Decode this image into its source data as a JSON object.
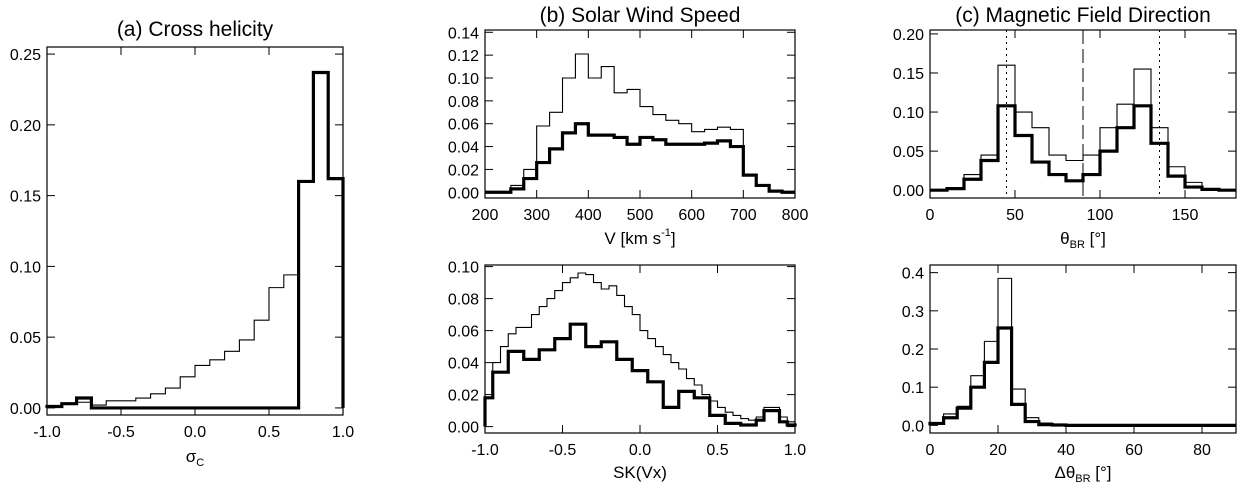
{
  "chart_data": [
    {
      "type": "histogram",
      "title": "(a) Cross helicity",
      "xlabel": "σ",
      "xlabel_sub": "C",
      "xlabel_sup": "",
      "xlim": [
        -1.0,
        1.0
      ],
      "ylim": [
        -0.005,
        0.255
      ],
      "xticks": [
        "-1.0",
        "-0.5",
        "0.0",
        "0.5",
        "1.0"
      ],
      "xtick_values": [
        -1.0,
        -0.5,
        0.0,
        0.5,
        1.0
      ],
      "yticks": [
        "0.00",
        "0.05",
        "0.10",
        "0.15",
        "0.20",
        "0.25"
      ],
      "ytick_values": [
        0,
        0.05,
        0.1,
        0.15,
        0.2,
        0.25
      ],
      "bin_edges": [
        -1.0,
        -0.9,
        -0.8,
        -0.7,
        -0.6,
        -0.5,
        -0.4,
        -0.3,
        -0.2,
        -0.1,
        0.0,
        0.1,
        0.2,
        0.3,
        0.4,
        0.5,
        0.6,
        0.7,
        0.8,
        0.9,
        1.0
      ],
      "series": [
        {
          "style": "thin",
          "values": [
            0.001,
            0.003,
            0.004,
            0.002,
            0.005,
            0.005,
            0.007,
            0.01,
            0.014,
            0.022,
            0.03,
            0.034,
            0.04,
            0.048,
            0.062,
            0.085,
            0.094,
            0.16,
            0.237,
            0.162
          ]
        },
        {
          "style": "thick",
          "values": [
            0.001,
            0.003,
            0.007,
            0.0,
            0.0,
            0.0,
            0.0,
            0.0,
            0.0,
            0.0,
            0.0,
            0.0,
            0.0,
            0.0,
            0.0,
            0.0,
            0.0,
            0.16,
            0.237,
            0.162
          ]
        }
      ],
      "vlines": []
    },
    {
      "type": "histogram",
      "title": "(b) Solar Wind Speed",
      "xlabel": "V [km s",
      "xlabel_sub": "",
      "xlabel_sup": "-1",
      "xlabel_after": "]",
      "xlim": [
        200,
        800
      ],
      "ylim": [
        -0.005,
        0.142
      ],
      "xticks": [
        "200",
        "300",
        "400",
        "500",
        "600",
        "700",
        "800"
      ],
      "xtick_values": [
        200,
        300,
        400,
        500,
        600,
        700,
        800
      ],
      "yticks": [
        "0.00",
        "0.02",
        "0.04",
        "0.06",
        "0.08",
        "0.10",
        "0.12",
        "0.14"
      ],
      "ytick_values": [
        0,
        0.02,
        0.04,
        0.06,
        0.08,
        0.1,
        0.12,
        0.14
      ],
      "bin_edges": [
        200,
        225,
        250,
        275,
        300,
        325,
        350,
        375,
        400,
        425,
        450,
        475,
        500,
        525,
        550,
        575,
        600,
        625,
        650,
        675,
        700,
        725,
        750,
        775,
        800
      ],
      "series": [
        {
          "style": "thin",
          "values": [
            0.0,
            0.0,
            0.006,
            0.02,
            0.058,
            0.07,
            0.1,
            0.121,
            0.1,
            0.11,
            0.087,
            0.09,
            0.075,
            0.068,
            0.063,
            0.06,
            0.053,
            0.055,
            0.057,
            0.055,
            0.015,
            0.006,
            0.001,
            0.0
          ]
        },
        {
          "style": "thick",
          "values": [
            0.0,
            0.0,
            0.003,
            0.012,
            0.026,
            0.038,
            0.052,
            0.06,
            0.05,
            0.05,
            0.048,
            0.042,
            0.048,
            0.046,
            0.042,
            0.042,
            0.042,
            0.043,
            0.045,
            0.04,
            0.015,
            0.006,
            0.001,
            0.0
          ]
        }
      ],
      "vlines": []
    },
    {
      "type": "histogram",
      "title": "(c) Magnetic Field Direction",
      "xlabel": "θ",
      "xlabel_sub": "BR",
      "xlabel_sup": "",
      "xlabel_after": " [°]",
      "xlim": [
        0,
        180
      ],
      "ylim": [
        -0.01,
        0.205
      ],
      "xticks": [
        "0",
        "50",
        "100",
        "150"
      ],
      "xtick_values": [
        0,
        50,
        100,
        150
      ],
      "yticks": [
        "0.00",
        "0.05",
        "0.10",
        "0.15",
        "0.20"
      ],
      "ytick_values": [
        0,
        0.05,
        0.1,
        0.15,
        0.2
      ],
      "bin_edges": [
        0,
        10,
        20,
        30,
        40,
        50,
        60,
        70,
        80,
        90,
        100,
        110,
        120,
        130,
        140,
        150,
        160,
        170,
        180
      ],
      "series": [
        {
          "style": "thin",
          "values": [
            0.0,
            0.002,
            0.02,
            0.045,
            0.16,
            0.1,
            0.08,
            0.045,
            0.038,
            0.045,
            0.08,
            0.11,
            0.155,
            0.08,
            0.03,
            0.01,
            0.002,
            0.0
          ]
        },
        {
          "style": "thick",
          "values": [
            0.0,
            0.002,
            0.014,
            0.038,
            0.108,
            0.07,
            0.036,
            0.02,
            0.012,
            0.02,
            0.05,
            0.08,
            0.108,
            0.06,
            0.018,
            0.004,
            0.001,
            0.0
          ]
        }
      ],
      "vlines": [
        {
          "x": 45,
          "style": "dotted"
        },
        {
          "x": 90,
          "style": "dashed"
        },
        {
          "x": 135,
          "style": "dotted"
        }
      ]
    },
    {
      "type": "histogram",
      "title": "",
      "xlabel": "SK(Vx)",
      "xlabel_sub": "",
      "xlabel_sup": "",
      "xlim": [
        -1.0,
        1.0
      ],
      "ylim": [
        -0.004,
        0.101
      ],
      "xticks": [
        "-1.0",
        "-0.5",
        "0.0",
        "0.5",
        "1.0"
      ],
      "xtick_values": [
        -1.0,
        -0.5,
        0.0,
        0.5,
        1.0
      ],
      "yticks": [
        "0.00",
        "0.02",
        "0.04",
        "0.06",
        "0.08",
        "0.10"
      ],
      "ytick_values": [
        0,
        0.02,
        0.04,
        0.06,
        0.08,
        0.1
      ],
      "bin_edges": [
        -1.0,
        -0.95,
        -0.9,
        -0.85,
        -0.8,
        -0.75,
        -0.7,
        -0.65,
        -0.6,
        -0.55,
        -0.5,
        -0.45,
        -0.4,
        -0.35,
        -0.3,
        -0.25,
        -0.2,
        -0.15,
        -0.1,
        -0.05,
        0.0,
        0.05,
        0.1,
        0.15,
        0.2,
        0.25,
        0.3,
        0.35,
        0.4,
        0.45,
        0.5,
        0.55,
        0.6,
        0.65,
        0.7,
        0.75,
        0.8,
        0.85,
        0.9,
        0.95,
        1.0
      ],
      "series": [
        {
          "style": "thin",
          "values": [
            0.018,
            0.04,
            0.05,
            0.058,
            0.062,
            0.062,
            0.07,
            0.075,
            0.08,
            0.085,
            0.09,
            0.093,
            0.096,
            0.095,
            0.09,
            0.086,
            0.088,
            0.082,
            0.075,
            0.07,
            0.06,
            0.055,
            0.05,
            0.045,
            0.04,
            0.036,
            0.03,
            0.026,
            0.02,
            0.016,
            0.012,
            0.009,
            0.007,
            0.005,
            0.004,
            0.006,
            0.012,
            0.012,
            0.006,
            0.003
          ]
        },
        {
          "style": "thick",
          "values": [
            0.018,
            0.034,
            0.034,
            0.047,
            0.047,
            0.042,
            0.042,
            0.048,
            0.048,
            0.055,
            0.055,
            0.064,
            0.064,
            0.05,
            0.05,
            0.053,
            0.053,
            0.042,
            0.042,
            0.035,
            0.035,
            0.028,
            0.028,
            0.012,
            0.012,
            0.022,
            0.022,
            0.018,
            0.018,
            0.007,
            0.007,
            0.002,
            0.002,
            0.001,
            0.001,
            0.004,
            0.01,
            0.01,
            0.003,
            0.001
          ]
        }
      ],
      "vlines": []
    },
    {
      "type": "histogram",
      "title": "",
      "xlabel": "Δθ",
      "xlabel_sub": "BR",
      "xlabel_sup": "",
      "xlabel_after": " [°]",
      "xlim": [
        0,
        90
      ],
      "ylim": [
        -0.02,
        0.42
      ],
      "xticks": [
        "0",
        "20",
        "40",
        "60",
        "80"
      ],
      "xtick_values": [
        0,
        20,
        40,
        60,
        80
      ],
      "yticks": [
        "0.0",
        "0.1",
        "0.2",
        "0.3",
        "0.4"
      ],
      "ytick_values": [
        0,
        0.1,
        0.2,
        0.3,
        0.4
      ],
      "bin_edges": [
        0,
        4,
        8,
        12,
        16,
        20,
        24,
        28,
        32,
        36,
        40,
        44,
        48,
        52,
        56,
        60,
        64,
        68,
        72,
        76,
        80,
        84,
        88,
        90
      ],
      "series": [
        {
          "style": "thin",
          "values": [
            0.005,
            0.03,
            0.05,
            0.13,
            0.22,
            0.385,
            0.095,
            0.02,
            0.006,
            0.003,
            0.002,
            0.001,
            0.0,
            0.0,
            0.0,
            0.0,
            0.0,
            0.0,
            0.0,
            0.0,
            0.0,
            0.0,
            0.0
          ]
        },
        {
          "style": "thick",
          "values": [
            0.005,
            0.02,
            0.045,
            0.1,
            0.165,
            0.255,
            0.055,
            0.01,
            0.002,
            0.001,
            0.0,
            0.0,
            0.0,
            0.0,
            0.0,
            0.0,
            0.0,
            0.0,
            0.0,
            0.0,
            0.0,
            0.0,
            0.0
          ]
        }
      ],
      "vlines": []
    }
  ]
}
